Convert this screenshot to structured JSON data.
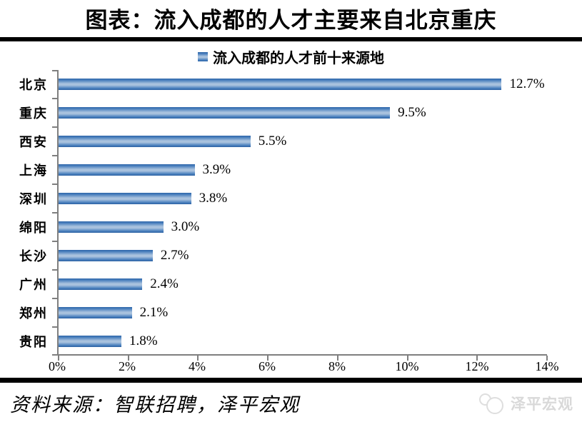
{
  "header": {
    "title": "图表：流入成都的人才主要来自北京重庆"
  },
  "chart_data": {
    "type": "bar",
    "orientation": "horizontal",
    "legend": "流入成都的人才前十来源地",
    "legend_position": "top",
    "grid": false,
    "categories": [
      "北京",
      "重庆",
      "西安",
      "上海",
      "深圳",
      "绵阳",
      "长沙",
      "广州",
      "郑州",
      "贵阳"
    ],
    "values": [
      12.7,
      9.5,
      5.5,
      3.9,
      3.8,
      3.0,
      2.7,
      2.4,
      2.1,
      1.8
    ],
    "value_labels": [
      "12.7%",
      "9.5%",
      "5.5%",
      "3.9%",
      "3.8%",
      "3.0%",
      "2.7%",
      "2.4%",
      "2.1%",
      "1.8%"
    ],
    "xlim": [
      0,
      14
    ],
    "x_ticks": [
      "0%",
      "2%",
      "4%",
      "6%",
      "8%",
      "10%",
      "12%",
      "14%"
    ],
    "bar_color_edge": "#2e66a8",
    "bar_color_mid": "#a9c2de",
    "axis_color": "#7f7f7f"
  },
  "footer": {
    "source": "资料来源：智联招聘，泽平宏观",
    "logo_text": "泽平宏观"
  }
}
